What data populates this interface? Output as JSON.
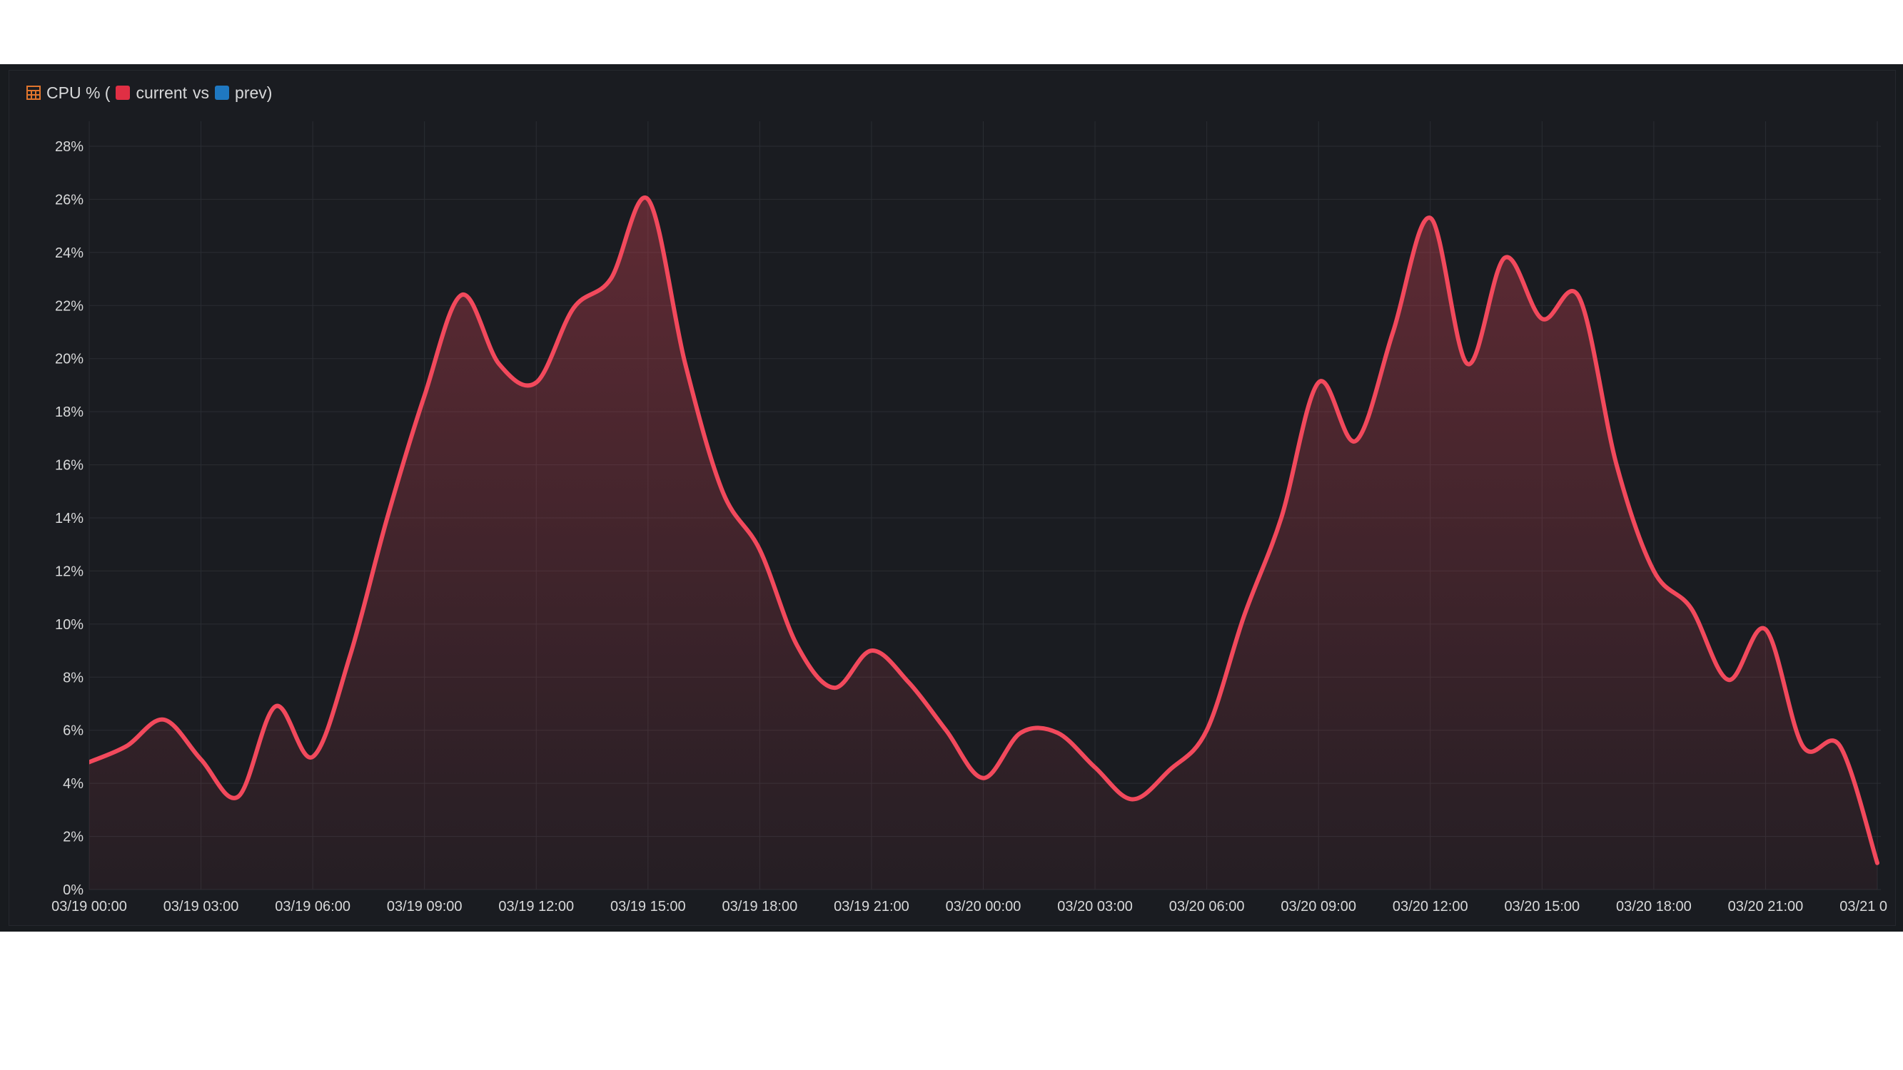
{
  "panel": {
    "title_prefix": "CPU % (",
    "current_label": "current",
    "vs_label": "vs",
    "prev_label": "prev)",
    "title_icon": "table-icon",
    "current_color": "#e02f44",
    "prev_color": "#1f78c1"
  },
  "colors": {
    "line": "#f2495c",
    "grid": "#2a2d33",
    "tick_text": "#d8d9da",
    "background": "#1a1c21"
  },
  "chart_data": {
    "type": "area",
    "title": "",
    "xlabel": "",
    "ylabel": "",
    "ylim": [
      0,
      28
    ],
    "y_ticks": [
      0,
      2,
      4,
      6,
      8,
      10,
      12,
      14,
      16,
      18,
      20,
      22,
      24,
      26,
      28
    ],
    "y_tick_labels": [
      "0%",
      "2%",
      "4%",
      "6%",
      "8%",
      "10%",
      "12%",
      "14%",
      "16%",
      "18%",
      "20%",
      "22%",
      "24%",
      "26%",
      "28%"
    ],
    "xlim_hours": [
      0,
      48
    ],
    "x_ticks_hours": [
      0,
      3,
      6,
      9,
      12,
      15,
      18,
      21,
      24,
      27,
      30,
      33,
      36,
      39,
      42,
      45,
      48
    ],
    "x_tick_labels": [
      "03/19 00:00",
      "03/19 03:00",
      "03/19 06:00",
      "03/19 09:00",
      "03/19 12:00",
      "03/19 15:00",
      "03/19 18:00",
      "03/19 21:00",
      "03/20 00:00",
      "03/20 03:00",
      "03/20 06:00",
      "03/20 09:00",
      "03/20 12:00",
      "03/20 15:00",
      "03/20 18:00",
      "03/20 21:00",
      "03/21 0"
    ],
    "grid": true,
    "legend": "none",
    "series": [
      {
        "x_hours": [
          0,
          1,
          2,
          3,
          4,
          5,
          6,
          7,
          8,
          9,
          10,
          11,
          12,
          13,
          14,
          15,
          16,
          17,
          18,
          19,
          20,
          21,
          22,
          23,
          24,
          25,
          26,
          27,
          28,
          29,
          30,
          31,
          32,
          33,
          34,
          35,
          36,
          37,
          38,
          39,
          40,
          41,
          42,
          43,
          44,
          45,
          46,
          47,
          48
        ],
        "values": [
          4.8,
          5.4,
          6.4,
          4.9,
          3.5,
          6.9,
          5.0,
          8.8,
          14.0,
          18.6,
          22.4,
          19.8,
          19.1,
          21.9,
          23.0,
          26.0,
          19.8,
          15.0,
          12.8,
          9.2,
          7.6,
          9.0,
          7.8,
          6.0,
          4.2,
          5.9,
          5.9,
          4.6,
          3.4,
          4.5,
          6.0,
          10.3,
          14.0,
          19.1,
          16.9,
          21.0,
          25.3,
          19.8,
          23.8,
          21.5,
          22.3,
          16.0,
          12.0,
          10.6,
          7.9,
          9.8,
          5.4,
          5.4,
          1.0
        ]
      }
    ]
  }
}
